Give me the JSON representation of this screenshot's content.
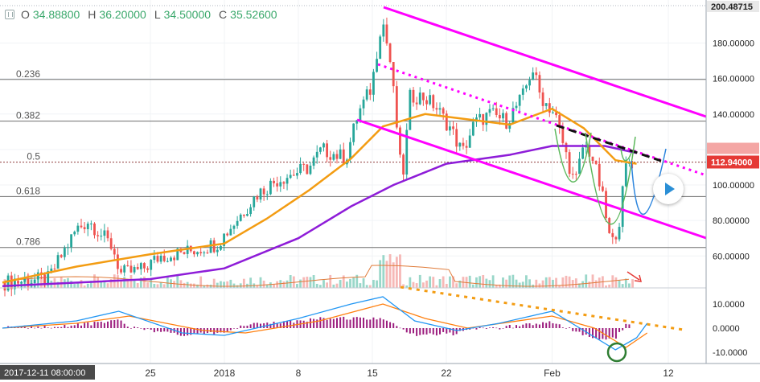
{
  "ohlc": {
    "open_label": "O",
    "open": "34.88800",
    "high_label": "H",
    "high": "36.20000",
    "low_label": "L",
    "low": "34.50000",
    "close_label": "C",
    "close": "35.52600"
  },
  "colors": {
    "up": "#26a69a",
    "down": "#ef5350",
    "fast_ma": "#f39c12",
    "slow_ma": "#8e1cd8",
    "channel": "#ff00ff",
    "macd": "#2196f3",
    "signal": "#ff7f0e",
    "hist": "#9c1d7e",
    "price_tag": "#e53935",
    "circle": "#2e7d32",
    "projection": "#2e86de",
    "pattern": "#5cb85c"
  },
  "chart_data": [
    {
      "type": "candlestick",
      "title": "",
      "x_ticks": [
        "25",
        "2018",
        "8",
        "15",
        "22",
        "Feb",
        "12"
      ],
      "x_tick_dates": [
        "2017-12-25",
        "2018-01-01",
        "2018-01-08",
        "2018-01-15",
        "2018-01-22",
        "2018-02-01",
        "2018-02-12"
      ],
      "crosshair_time": "2017-12-11 08:00:00",
      "y_axis_labels": [
        "200.48715",
        "180.00000",
        "160.00000",
        "140.00000",
        "120.00000",
        "100.00000",
        "80.00000",
        "60.00000"
      ],
      "y_ticks": [
        180,
        160,
        140,
        120,
        100,
        80,
        60
      ],
      "ylim": [
        42,
        202
      ],
      "last_price": "112.94000",
      "high_marker": "200.48715",
      "fib_levels": [
        {
          "label": "0.236",
          "price": 159.5
        },
        {
          "label": "0.382",
          "price": 136.0
        },
        {
          "label": "0.5",
          "price": 112.9
        },
        {
          "label": "0.618",
          "price": 93.5
        },
        {
          "label": "0.786",
          "price": 64.8
        }
      ],
      "fast_ma": [
        [
          "2017-12-11",
          45
        ],
        [
          "2017-12-18",
          54
        ],
        [
          "2017-12-25",
          61
        ],
        [
          "2018-01-01",
          67
        ],
        [
          "2018-01-05",
          81
        ],
        [
          "2018-01-09",
          97
        ],
        [
          "2018-01-13",
          115
        ],
        [
          "2018-01-16",
          133
        ],
        [
          "2018-01-20",
          140
        ],
        [
          "2018-01-24",
          137
        ],
        [
          "2018-01-28",
          134
        ],
        [
          "2018-02-01",
          143
        ],
        [
          "2018-02-04",
          132
        ],
        [
          "2018-02-07",
          114
        ],
        [
          "2018-02-09",
          112
        ]
      ],
      "slow_ma": [
        [
          "2017-12-11",
          43
        ],
        [
          "2017-12-25",
          47
        ],
        [
          "2018-01-01",
          53
        ],
        [
          "2018-01-08",
          70
        ],
        [
          "2018-01-13",
          88
        ],
        [
          "2018-01-17",
          100
        ],
        [
          "2018-01-22",
          112
        ],
        [
          "2018-01-28",
          117
        ],
        [
          "2018-02-01",
          122
        ],
        [
          "2018-02-06",
          122
        ],
        [
          "2018-02-09",
          118
        ]
      ]
    },
    {
      "type": "line",
      "title": "",
      "y_axis_labels": [
        "10.0000",
        "0.0000",
        "-10.0000"
      ],
      "y_ticks": [
        10,
        0,
        -10
      ],
      "ylim": [
        -14,
        16
      ],
      "series": [
        {
          "values": [
            [
              "2017-12-11",
              0
            ],
            [
              "2017-12-18",
              3
            ],
            [
              "2017-12-22",
              7
            ],
            [
              "2017-12-28",
              -2
            ],
            [
              "2018-01-01",
              -3
            ],
            [
              "2018-01-08",
              4
            ],
            [
              "2018-01-13",
              10
            ],
            [
              "2018-01-16",
              13
            ],
            [
              "2018-01-19",
              3
            ],
            [
              "2018-01-23",
              -1
            ],
            [
              "2018-01-27",
              2
            ],
            [
              "2018-02-01",
              7
            ],
            [
              "2018-02-04",
              -1
            ],
            [
              "2018-02-07",
              -9
            ],
            [
              "2018-02-09",
              -4
            ],
            [
              "2018-02-10",
              2
            ]
          ]
        },
        {
          "values": [
            [
              "2017-12-11",
              0
            ],
            [
              "2017-12-18",
              2
            ],
            [
              "2017-12-23",
              5
            ],
            [
              "2017-12-30",
              -1
            ],
            [
              "2018-01-03",
              -2
            ],
            [
              "2018-01-10",
              3
            ],
            [
              "2018-01-16",
              10
            ],
            [
              "2018-01-20",
              4
            ],
            [
              "2018-01-24",
              0
            ],
            [
              "2018-02-01",
              5
            ],
            [
              "2018-02-05",
              0
            ],
            [
              "2018-02-08",
              -8
            ],
            [
              "2018-02-10",
              -2
            ]
          ]
        }
      ]
    }
  ]
}
